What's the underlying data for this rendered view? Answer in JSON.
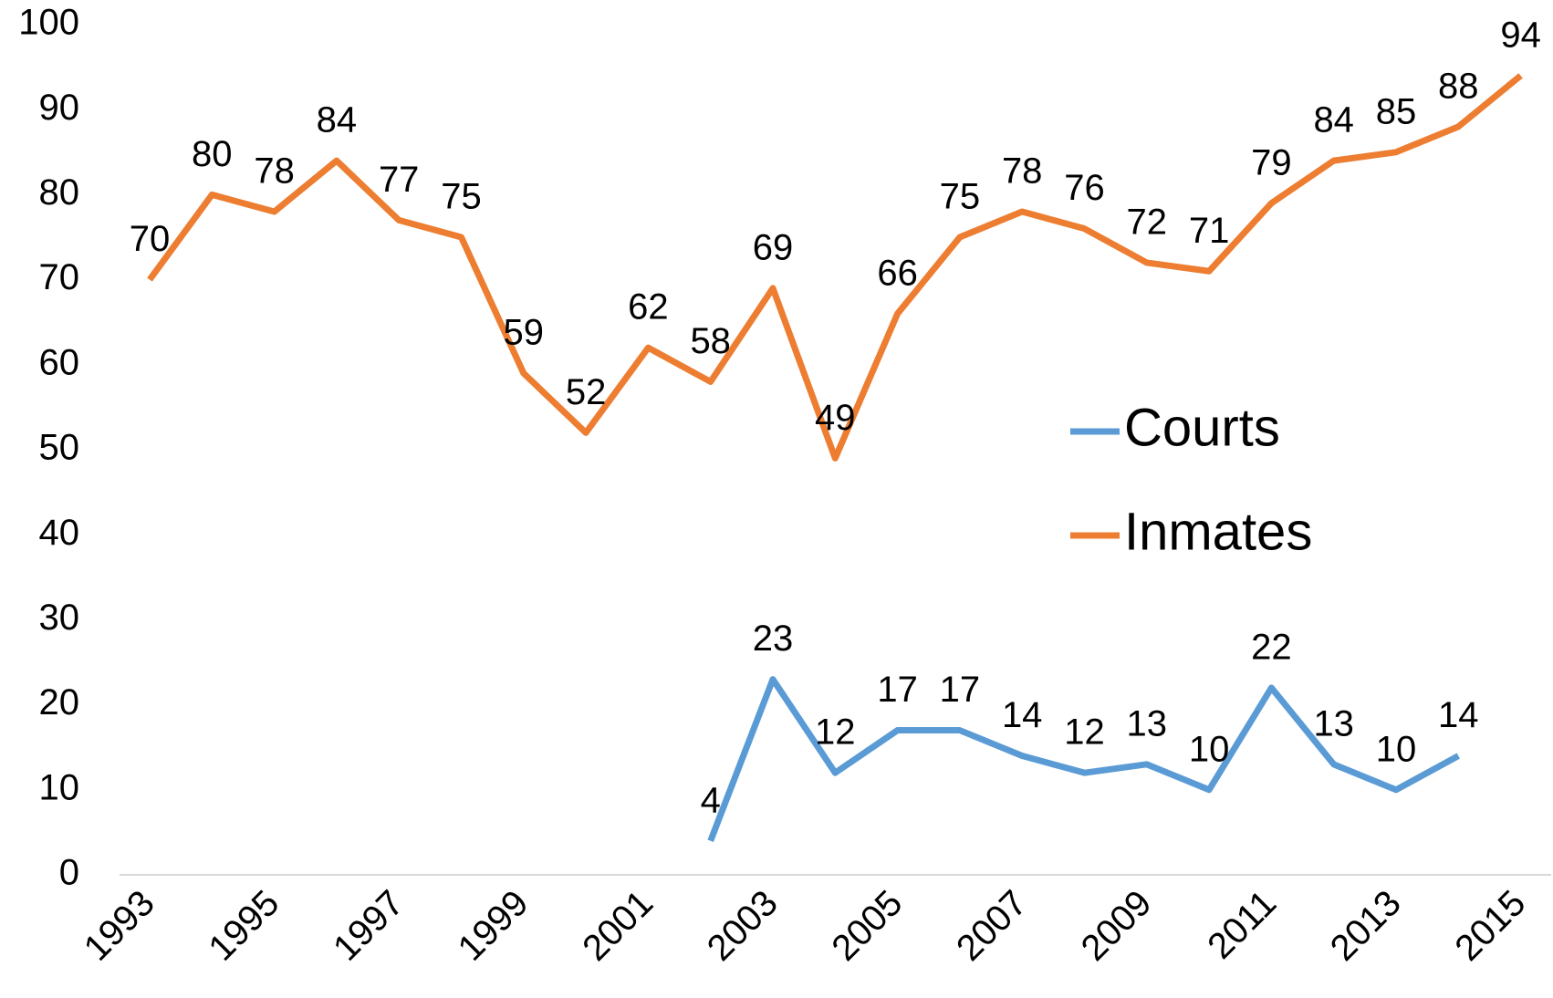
{
  "chart_data": {
    "type": "line",
    "categories": [
      "1993",
      null,
      "1995",
      null,
      "1997",
      null,
      "1999",
      null,
      "2001",
      null,
      "2003",
      null,
      "2005",
      null,
      "2007",
      null,
      "2009",
      null,
      "2011",
      null,
      "2013",
      null,
      "2015"
    ],
    "series": [
      {
        "name": "Courts",
        "color": "#5b9bd5",
        "values": [
          null,
          null,
          null,
          null,
          null,
          null,
          null,
          null,
          null,
          4,
          23,
          12,
          17,
          17,
          14,
          12,
          13,
          10,
          22,
          13,
          10,
          14,
          null
        ]
      },
      {
        "name": "Inmates",
        "color": "#ed7d31",
        "values": [
          70,
          80,
          78,
          84,
          77,
          75,
          59,
          52,
          62,
          58,
          69,
          49,
          66,
          75,
          78,
          76,
          72,
          71,
          79,
          84,
          85,
          88,
          94
        ]
      }
    ],
    "ylim": [
      0,
      100
    ],
    "yticks": [
      0,
      10,
      20,
      30,
      40,
      50,
      60,
      70,
      80,
      90,
      100
    ],
    "grid": false,
    "legend": "right"
  }
}
